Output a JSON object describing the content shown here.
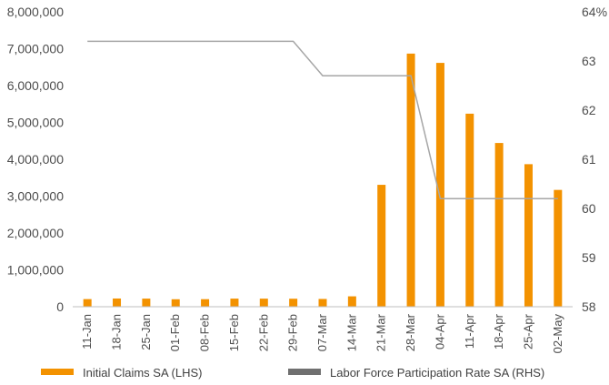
{
  "chart_data": {
    "type": "bar+line",
    "categories": [
      "11-Jan",
      "18-Jan",
      "25-Jan",
      "01-Feb",
      "08-Feb",
      "15-Feb",
      "22-Feb",
      "29-Feb",
      "07-Mar",
      "14-Mar",
      "21-Mar",
      "28-Mar",
      "04-Apr",
      "11-Apr",
      "18-Apr",
      "25-Apr",
      "02-May"
    ],
    "series": [
      {
        "name": "Initial Claims SA (LHS)",
        "type": "bar",
        "axis": "left",
        "color": "#f39200",
        "values": [
          207000,
          223000,
          220000,
          203000,
          205000,
          220000,
          219000,
          217000,
          211000,
          282000,
          3307000,
          6867000,
          6615000,
          5237000,
          4442000,
          3867000,
          3169000
        ]
      },
      {
        "name": "Labor Force Participation Rate SA (RHS)",
        "type": "line",
        "axis": "right",
        "color": "#a6a6a6",
        "legend_color": "#707070",
        "values": [
          63.4,
          63.4,
          63.4,
          63.4,
          63.4,
          63.4,
          63.4,
          63.4,
          62.7,
          62.7,
          62.7,
          62.7,
          60.2,
          60.2,
          60.2,
          60.2,
          60.2
        ]
      }
    ],
    "y_left": {
      "ylim": [
        0,
        8000000
      ],
      "ticks": [
        0,
        1000000,
        2000000,
        3000000,
        4000000,
        5000000,
        6000000,
        7000000,
        8000000
      ],
      "tick_labels": [
        "0",
        "1,000,000",
        "2,000,000",
        "3,000,000",
        "4,000,000",
        "5,000,000",
        "6,000,000",
        "7,000,000",
        "8,000,000"
      ]
    },
    "y_right": {
      "ylim": [
        58,
        64
      ],
      "ticks": [
        58,
        59,
        60,
        61,
        62,
        63,
        64
      ],
      "tick_labels": [
        "58",
        "59",
        "60",
        "61",
        "62",
        "63",
        "64%"
      ]
    },
    "grid": false,
    "legend_position": "bottom",
    "title": "",
    "xlabel": "",
    "ylabel": ""
  }
}
